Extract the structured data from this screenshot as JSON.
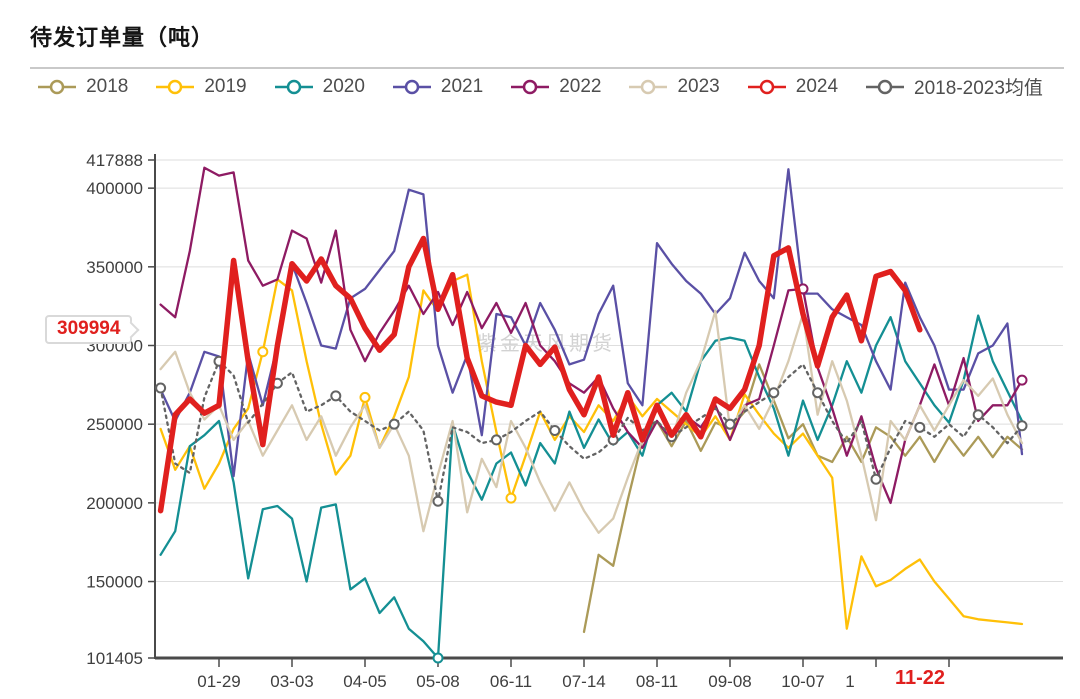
{
  "header": {
    "title": "待发订单量（吨）"
  },
  "watermark": "紫金天风期货",
  "chart_data": {
    "type": "line",
    "title": "待发订单量（吨）",
    "legend_position": "top",
    "grid": true,
    "ylim": [
      101405,
      417888
    ],
    "y_ticks": [
      101405,
      150000,
      200000,
      250000,
      300000,
      350000,
      400000,
      417888
    ],
    "x_ticks": [
      {
        "index": 4,
        "label": "01-29"
      },
      {
        "index": 9,
        "label": "03-03"
      },
      {
        "index": 14,
        "label": "04-05"
      },
      {
        "index": 19,
        "label": "05-08"
      },
      {
        "index": 24,
        "label": "06-11"
      },
      {
        "index": 29,
        "label": "07-14"
      },
      {
        "index": 34,
        "label": "08-11"
      },
      {
        "index": 39,
        "label": "09-08"
      },
      {
        "index": 44,
        "label": "10-07"
      },
      {
        "index": 49,
        "label": "1",
        "dx": -26
      },
      {
        "index": 54,
        "label": ""
      }
    ],
    "highlight_x_label": {
      "label": "11-22",
      "index": 52,
      "color": "#e0201e"
    },
    "callout": {
      "label": "309994",
      "value": 309994,
      "series": "2024"
    },
    "series": [
      {
        "name": "2018",
        "color": "#ab9a58",
        "values": [
          null,
          null,
          null,
          null,
          null,
          null,
          null,
          null,
          null,
          null,
          null,
          null,
          null,
          null,
          null,
          null,
          null,
          null,
          null,
          null,
          null,
          null,
          null,
          null,
          null,
          null,
          null,
          null,
          null,
          118000,
          167000,
          160000,
          202000,
          240000,
          252000,
          236000,
          252000,
          233000,
          251000,
          247000,
          258000,
          288000,
          265000,
          241000,
          250000,
          230000,
          226000,
          242000,
          226000,
          248000,
          242000,
          230000,
          242000,
          226000,
          242000,
          230000,
          242000,
          229000,
          242000,
          234000
        ]
      },
      {
        "name": "2019",
        "color": "#ffc008",
        "markers": [
          7,
          14,
          24
        ],
        "values": [
          247000,
          221000,
          236000,
          209000,
          225000,
          247000,
          260000,
          296000,
          342000,
          335000,
          290000,
          250000,
          218000,
          230000,
          267000,
          235000,
          255000,
          280000,
          335000,
          322000,
          341000,
          345000,
          290000,
          245000,
          203000,
          230000,
          258000,
          240000,
          255000,
          245000,
          262000,
          252000,
          268000,
          255000,
          266000,
          258000,
          250000,
          242000,
          255000,
          240000,
          269000,
          256000,
          244000,
          235000,
          244000,
          230000,
          216000,
          120000,
          166000,
          147000,
          151000,
          158000,
          164000,
          150000,
          139000,
          128000,
          126000,
          125000,
          124000,
          123000
        ]
      },
      {
        "name": "2020",
        "color": "#148f93",
        "markers": [
          19
        ],
        "values": [
          167000,
          182000,
          236000,
          243000,
          252000,
          213000,
          152000,
          196000,
          198000,
          190000,
          150000,
          197000,
          199000,
          145000,
          152000,
          130000,
          140000,
          120000,
          112000,
          101405,
          250000,
          220000,
          202000,
          225000,
          232000,
          211000,
          238000,
          225000,
          258000,
          235000,
          253000,
          237000,
          245000,
          230000,
          262000,
          270000,
          258000,
          290000,
          303000,
          305000,
          303000,
          280000,
          260000,
          230000,
          265000,
          240000,
          262000,
          290000,
          270000,
          300000,
          318000,
          290000,
          276000,
          262000,
          251000,
          278000,
          319000,
          290000,
          271000,
          252000
        ]
      },
      {
        "name": "2021",
        "color": "#5a50a5",
        "values": [
          272000,
          252000,
          270000,
          296000,
          293000,
          217000,
          295000,
          262000,
          300000,
          352000,
          327000,
          300000,
          298000,
          330000,
          336000,
          348000,
          360000,
          399000,
          396000,
          300000,
          270000,
          294000,
          243000,
          320000,
          318000,
          300000,
          327000,
          310000,
          288000,
          291000,
          320000,
          338000,
          276000,
          262000,
          365000,
          352000,
          341000,
          333000,
          320000,
          330000,
          359000,
          341000,
          330000,
          412000,
          333000,
          333000,
          323000,
          318000,
          313000,
          290000,
          272000,
          340000,
          318000,
          300000,
          272000,
          272000,
          295000,
          300000,
          314000,
          231000
        ]
      },
      {
        "name": "2022",
        "color": "#8e1b63",
        "markers": [
          44,
          59
        ],
        "values": [
          326000,
          318000,
          360000,
          413000,
          408000,
          410000,
          354000,
          338000,
          342000,
          373000,
          368000,
          340000,
          373000,
          310000,
          290000,
          308000,
          322000,
          338000,
          320000,
          334000,
          313000,
          334000,
          311000,
          327000,
          308000,
          327000,
          300000,
          290000,
          276000,
          270000,
          280000,
          260000,
          245000,
          235000,
          252000,
          240000,
          255000,
          248000,
          262000,
          240000,
          262000,
          266000,
          300000,
          335000,
          336000,
          286000,
          260000,
          230000,
          255000,
          222000,
          200000,
          240000,
          262000,
          288000,
          262000,
          292000,
          252000,
          262000,
          262000,
          278000
        ]
      },
      {
        "name": "2023",
        "color": "#d7cab1",
        "values": [
          285000,
          296000,
          270000,
          253000,
          262000,
          240000,
          252000,
          230000,
          246000,
          262000,
          240000,
          255000,
          230000,
          248000,
          262000,
          235000,
          250000,
          230000,
          182000,
          218000,
          252000,
          194000,
          228000,
          210000,
          252000,
          235000,
          213000,
          195000,
          213000,
          195000,
          181000,
          190000,
          216000,
          240000,
          262000,
          240000,
          270000,
          290000,
          322000,
          247000,
          262000,
          247000,
          266000,
          290000,
          320000,
          256000,
          290000,
          265000,
          230000,
          189000,
          252000,
          240000,
          262000,
          246000,
          262000,
          278000,
          268000,
          279000,
          256000,
          238000
        ]
      },
      {
        "name": "2024",
        "color": "#e0201e",
        "width": 5.5,
        "values": [
          195000,
          256000,
          266000,
          257000,
          262000,
          354000,
          290000,
          237000,
          300000,
          352000,
          341000,
          355000,
          338000,
          330000,
          311000,
          297000,
          307000,
          350000,
          368000,
          323000,
          345000,
          292000,
          268000,
          264000,
          262000,
          300000,
          288000,
          299000,
          272000,
          256000,
          280000,
          243000,
          270000,
          240000,
          262000,
          243000,
          256000,
          242000,
          266000,
          260000,
          272000,
          300000,
          357000,
          362000,
          320000,
          287000,
          318000,
          332000,
          303000,
          344000,
          347000,
          335000,
          309994
        ]
      },
      {
        "name": "2018-2023均值",
        "color": "#636363",
        "dashed": true,
        "markers": [
          0,
          4,
          8,
          12,
          16,
          19,
          23,
          27,
          31,
          35,
          39,
          42,
          45,
          49,
          52,
          56,
          59
        ],
        "values": [
          273000,
          225000,
          219000,
          267000,
          290000,
          281000,
          251000,
          263000,
          276000,
          283000,
          258000,
          262000,
          268000,
          258000,
          252000,
          246000,
          250000,
          258000,
          246000,
          201000,
          248000,
          245000,
          238000,
          240000,
          245000,
          252000,
          258000,
          246000,
          236000,
          228000,
          232000,
          240000,
          254000,
          246000,
          252000,
          242000,
          248000,
          254000,
          260000,
          250000,
          258000,
          264000,
          270000,
          280000,
          288000,
          270000,
          252000,
          238000,
          252000,
          215000,
          235000,
          252000,
          248000,
          242000,
          250000,
          242000,
          256000,
          248000,
          238000,
          249000
        ]
      }
    ]
  }
}
